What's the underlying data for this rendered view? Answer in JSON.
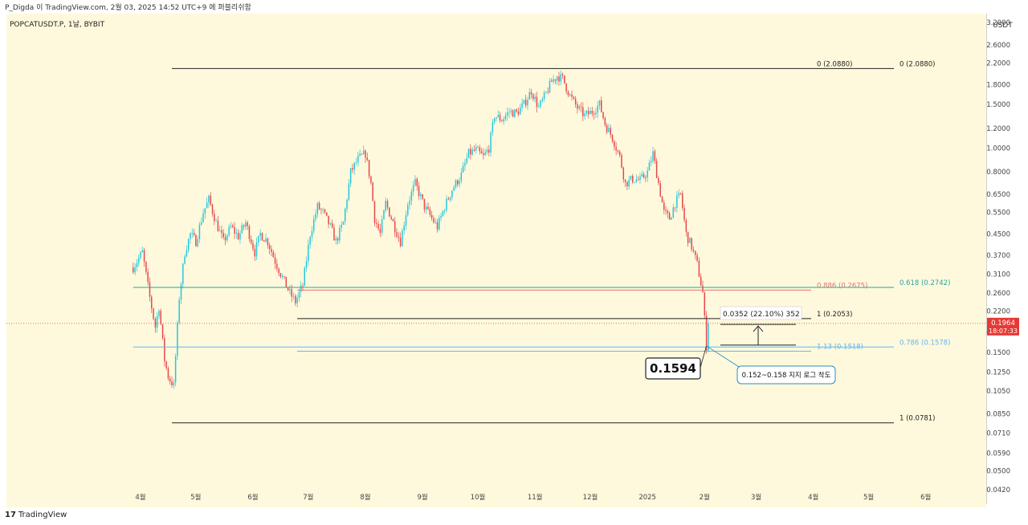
{
  "header": {
    "published": "P_Digda 이 TradingView.com, 2월 03, 2025 14:52 UTC+9 에 퍼블리쉬함",
    "symbol": "POPCATUSDT.P, 1날, BYBIT"
  },
  "footer": {
    "brand": "TradingView",
    "brand_mark": "17"
  },
  "colors": {
    "background": "#fef9dc",
    "up": "#26c6da",
    "down": "#e5484d",
    "fib_0886": "#e57373",
    "fib_0618": "#26a69a",
    "fib_0786": "#64b5f6",
    "current_price": "#e53935"
  },
  "chart_data": {
    "type": "candlestick",
    "title": "",
    "currency": "USDT",
    "scale": "log",
    "ylim": [
      0.039,
      3.5
    ],
    "y_ticks": [
      "3.2000",
      "2.6000",
      "2.2000",
      "1.8000",
      "1.5000",
      "1.2000",
      "1.0000",
      "0.8000",
      "0.6500",
      "0.5500",
      "0.4500",
      "0.3700",
      "0.3100",
      "0.2600",
      "0.2200",
      "0.1800",
      "0.1500",
      "0.1250",
      "0.1050",
      "0.0850",
      "0.0710",
      "0.0590",
      "0.0500",
      "0.0420"
    ],
    "x_ticks": [
      "4월",
      "5월",
      "6월",
      "7월",
      "8월",
      "9월",
      "10월",
      "11월",
      "12월",
      "2025",
      "2월",
      "3월",
      "4월",
      "5월",
      "6월"
    ],
    "close_path": [
      [
        "2024-03-28",
        0.33
      ],
      [
        "2024-04-02",
        0.38
      ],
      [
        "2024-04-06",
        0.25
      ],
      [
        "2024-04-09",
        0.19
      ],
      [
        "2024-04-11",
        0.23
      ],
      [
        "2024-04-14",
        0.14
      ],
      [
        "2024-04-16",
        0.12
      ],
      [
        "2024-04-19",
        0.11
      ],
      [
        "2024-04-22",
        0.25
      ],
      [
        "2024-04-25",
        0.38
      ],
      [
        "2024-04-28",
        0.45
      ],
      [
        "2024-05-01",
        0.42
      ],
      [
        "2024-05-05",
        0.55
      ],
      [
        "2024-05-08",
        0.62
      ],
      [
        "2024-05-12",
        0.5
      ],
      [
        "2024-05-16",
        0.42
      ],
      [
        "2024-05-20",
        0.48
      ],
      [
        "2024-05-24",
        0.44
      ],
      [
        "2024-05-28",
        0.5
      ],
      [
        "2024-06-02",
        0.38
      ],
      [
        "2024-06-05",
        0.45
      ],
      [
        "2024-06-09",
        0.42
      ],
      [
        "2024-06-13",
        0.35
      ],
      [
        "2024-06-17",
        0.3
      ],
      [
        "2024-06-21",
        0.26
      ],
      [
        "2024-06-24",
        0.24
      ],
      [
        "2024-06-28",
        0.28
      ],
      [
        "2024-07-02",
        0.45
      ],
      [
        "2024-07-06",
        0.58
      ],
      [
        "2024-07-09",
        0.55
      ],
      [
        "2024-07-13",
        0.48
      ],
      [
        "2024-07-16",
        0.42
      ],
      [
        "2024-07-20",
        0.5
      ],
      [
        "2024-07-24",
        0.8
      ],
      [
        "2024-07-28",
        0.9
      ],
      [
        "2024-08-01",
        0.95
      ],
      [
        "2024-08-04",
        0.72
      ],
      [
        "2024-08-06",
        0.52
      ],
      [
        "2024-08-09",
        0.45
      ],
      [
        "2024-08-12",
        0.6
      ],
      [
        "2024-08-16",
        0.5
      ],
      [
        "2024-08-20",
        0.42
      ],
      [
        "2024-08-24",
        0.6
      ],
      [
        "2024-08-28",
        0.72
      ],
      [
        "2024-09-02",
        0.58
      ],
      [
        "2024-09-06",
        0.52
      ],
      [
        "2024-09-09",
        0.48
      ],
      [
        "2024-09-13",
        0.58
      ],
      [
        "2024-09-17",
        0.68
      ],
      [
        "2024-09-22",
        0.78
      ],
      [
        "2024-09-26",
        0.95
      ],
      [
        "2024-09-30",
        0.98
      ],
      [
        "2024-10-04",
        0.92
      ],
      [
        "2024-10-07",
        1.0
      ],
      [
        "2024-10-10",
        1.35
      ],
      [
        "2024-10-14",
        1.3
      ],
      [
        "2024-10-18",
        1.4
      ],
      [
        "2024-10-22",
        1.38
      ],
      [
        "2024-10-26",
        1.5
      ],
      [
        "2024-10-30",
        1.7
      ],
      [
        "2024-11-03",
        1.45
      ],
      [
        "2024-11-06",
        1.6
      ],
      [
        "2024-11-10",
        1.85
      ],
      [
        "2024-11-13",
        1.95
      ],
      [
        "2024-11-16",
        1.9
      ],
      [
        "2024-11-20",
        1.62
      ],
      [
        "2024-11-24",
        1.45
      ],
      [
        "2024-11-28",
        1.35
      ],
      [
        "2024-12-02",
        1.4
      ],
      [
        "2024-12-06",
        1.5
      ],
      [
        "2024-12-09",
        1.25
      ],
      [
        "2024-12-13",
        1.1
      ],
      [
        "2024-12-17",
        0.92
      ],
      [
        "2024-12-20",
        0.72
      ],
      [
        "2024-12-24",
        0.75
      ],
      [
        "2024-12-28",
        0.74
      ],
      [
        "2025-01-01",
        0.8
      ],
      [
        "2025-01-04",
        0.95
      ],
      [
        "2025-01-07",
        0.72
      ],
      [
        "2025-01-10",
        0.55
      ],
      [
        "2025-01-13",
        0.52
      ],
      [
        "2025-01-16",
        0.6
      ],
      [
        "2025-01-19",
        0.65
      ],
      [
        "2025-01-22",
        0.45
      ],
      [
        "2025-01-25",
        0.4
      ],
      [
        "2025-01-28",
        0.34
      ],
      [
        "2025-01-31",
        0.26
      ],
      [
        "2025-02-02",
        0.1594
      ],
      [
        "2025-02-03",
        0.1964
      ]
    ],
    "current_price": {
      "value": "0.1964",
      "countdown": "18:07:33"
    },
    "levels": [
      {
        "id": "fib-top",
        "label": "0 (2.0880)",
        "label2": "0 (2.0880)",
        "value": 2.088,
        "x_start": "2024-04-18",
        "color": "#222222"
      },
      {
        "id": "fib-1-bottom",
        "label": "1 (0.0781)",
        "value": 0.0781,
        "x_start": "2024-04-18",
        "color": "#222222"
      },
      {
        "id": "fib-0886",
        "label": "0.886 (0.2675)",
        "value": 0.2675,
        "x_start": "2024-06-25",
        "color": "#e57373"
      },
      {
        "id": "fib-0618",
        "label": "0.618 (0.2742)",
        "value": 0.2742,
        "x_start": "2024-03-28",
        "color": "#26a69a"
      },
      {
        "id": "fib-1",
        "label": "1 (0.2053)",
        "value": 0.2053,
        "x_start": "2024-06-25",
        "color": "#222222"
      },
      {
        "id": "fib-113",
        "label": "1.13 (0.1518)",
        "value": 0.1518,
        "x_start": "2024-06-25",
        "color": "#64b5f6"
      },
      {
        "id": "fib-0786",
        "label": "0.786 (0.1578)",
        "value": 0.1578,
        "x_start": "2024-03-28",
        "color": "#64b5f6"
      }
    ],
    "annotations": {
      "measure": "0.0352 (22.10%) 352",
      "low_label": "0.1594",
      "support_note": "0.152~0.158 지지 로그 착도"
    }
  }
}
